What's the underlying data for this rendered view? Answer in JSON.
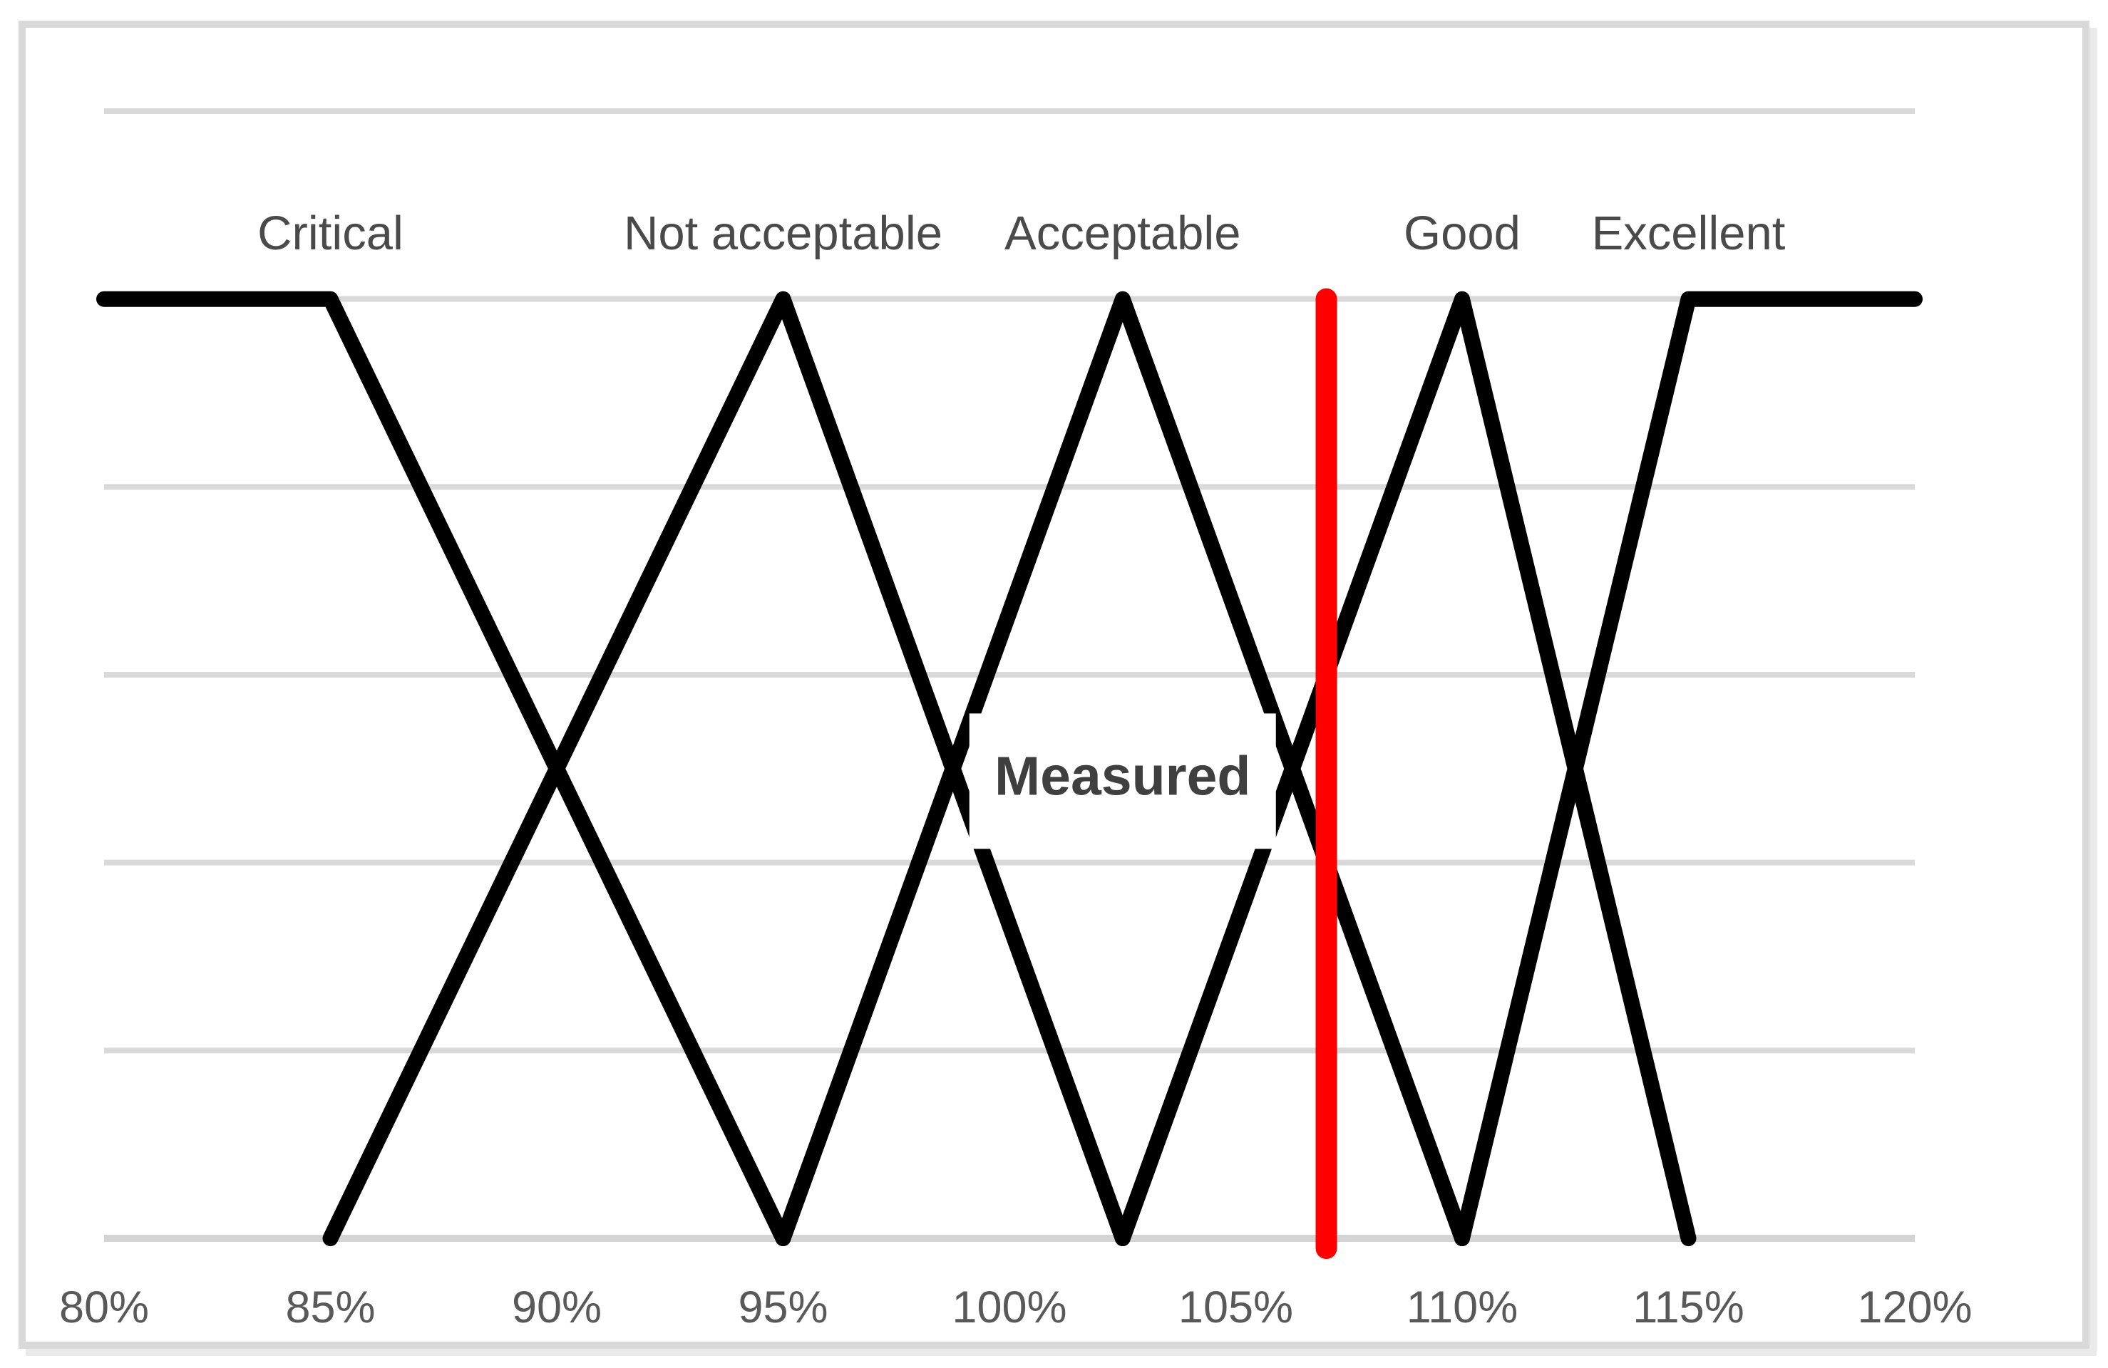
{
  "chart_data": {
    "type": "line",
    "title": "",
    "xlabel": "",
    "ylabel": "",
    "xlim": [
      80,
      120
    ],
    "ylim": [
      0,
      1.2
    ],
    "x_ticks": [
      "80%",
      "85%",
      "90%",
      "95%",
      "100%",
      "105%",
      "110%",
      "115%",
      "120%"
    ],
    "x_tick_values": [
      80,
      85,
      90,
      95,
      100,
      105,
      110,
      115,
      120
    ],
    "y_gridline_levels": [
      0.2,
      0.4,
      0.6,
      0.8,
      1.0,
      1.2
    ],
    "grid": "horizontal-only",
    "legend": "none",
    "series": [
      {
        "name": "Critical",
        "points": [
          [
            80,
            1
          ],
          [
            85,
            1
          ],
          [
            95,
            0
          ]
        ],
        "label_x": 85
      },
      {
        "name": "Not acceptable",
        "points": [
          [
            85,
            0
          ],
          [
            95,
            1
          ],
          [
            102.5,
            0
          ]
        ],
        "label_x": 95
      },
      {
        "name": "Acceptable",
        "points": [
          [
            95,
            0
          ],
          [
            102.5,
            1
          ],
          [
            110,
            0
          ]
        ],
        "label_x": 102.5
      },
      {
        "name": "Good",
        "points": [
          [
            102.5,
            0
          ],
          [
            110,
            1
          ],
          [
            115,
            0
          ]
        ],
        "label_x": 110
      },
      {
        "name": "Excellent",
        "points": [
          [
            110,
            0
          ],
          [
            115,
            1
          ],
          [
            120,
            1
          ]
        ],
        "label_x": 115
      }
    ],
    "series_labels_y": 1.07,
    "measured_line": {
      "label": "Measured",
      "x_value": 107,
      "label_x": 102.5,
      "label_y": 0.492
    },
    "colors": {
      "line": "#000000",
      "measured_line": "#ff0000",
      "gridline": "#d9d9d9",
      "axis_line": "#d4d4d4",
      "tick_label": "#595959",
      "series_label": "#4a4a4a",
      "measured_label": "#3f3f3f",
      "frame_border": "#d9d9d9",
      "frame_shadow": "#eaeaea",
      "background": "#ffffff"
    }
  }
}
